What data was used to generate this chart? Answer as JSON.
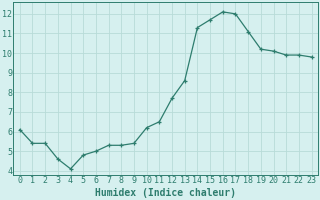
{
  "x": [
    0,
    1,
    2,
    3,
    4,
    5,
    6,
    7,
    8,
    9,
    10,
    11,
    12,
    13,
    14,
    15,
    16,
    17,
    18,
    19,
    20,
    21,
    22,
    23
  ],
  "y": [
    6.1,
    5.4,
    5.4,
    4.6,
    4.1,
    4.8,
    5.0,
    5.3,
    5.3,
    5.4,
    6.2,
    6.5,
    7.7,
    8.6,
    11.3,
    11.7,
    12.1,
    12.0,
    11.1,
    10.2,
    10.1,
    9.9,
    9.9,
    9.8
  ],
  "line_color": "#2e7d6e",
  "marker": "+",
  "marker_size": 3,
  "bg_color": "#d6f0ef",
  "grid_color": "#b8dbd8",
  "xlabel": "Humidex (Indice chaleur)",
  "xlabel_fontsize": 7,
  "tick_fontsize": 6,
  "xlim": [
    -0.5,
    23.5
  ],
  "ylim": [
    3.8,
    12.6
  ],
  "yticks": [
    4,
    5,
    6,
    7,
    8,
    9,
    10,
    11,
    12
  ],
  "xticks": [
    0,
    1,
    2,
    3,
    4,
    5,
    6,
    7,
    8,
    9,
    10,
    11,
    12,
    13,
    14,
    15,
    16,
    17,
    18,
    19,
    20,
    21,
    22,
    23
  ],
  "spine_color": "#2e7d6e",
  "axis_color": "#2e7d6e"
}
